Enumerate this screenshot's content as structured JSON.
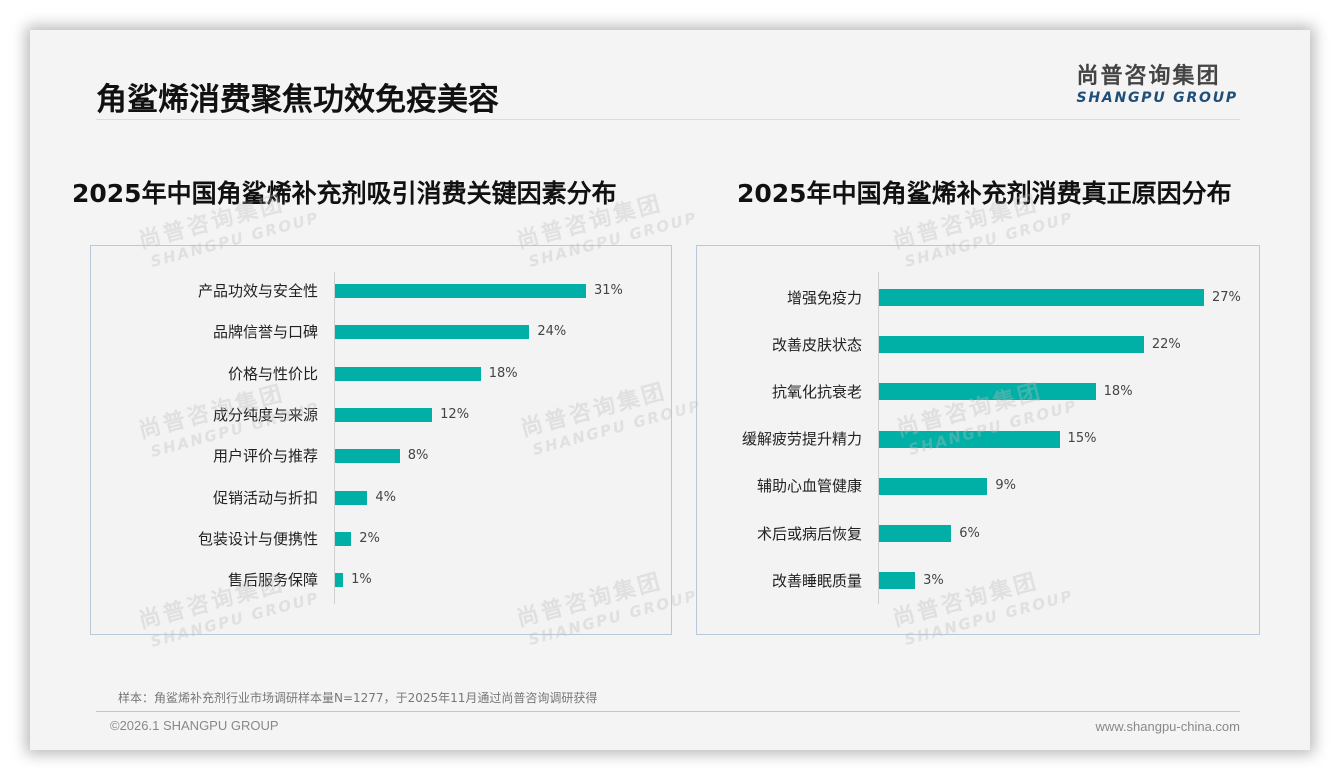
{
  "slide": {
    "title": "角鲨烯消费聚焦功效免疫美容",
    "logo": {
      "cn": "尚普咨询集团",
      "en": "SHANGPU GROUP"
    },
    "watermark": {
      "cn": "尚普咨询集团",
      "en": "SHANGPU GROUP"
    },
    "note": "样本：角鲨烯补充剂行业市场调研样本量N=1277，于2025年11月通过尚普咨询调研获得",
    "copyright": "©2026.1 SHANGPU GROUP",
    "website": "www.shangpu-china.com",
    "bar_color": "#00b0a6"
  },
  "chart_data": [
    {
      "type": "bar",
      "orientation": "horizontal",
      "title": "2025年中国角鲨烯补充剂吸引消费关键因素分布",
      "categories": [
        "产品功效与安全性",
        "品牌信誉与口碑",
        "价格与性价比",
        "成分纯度与来源",
        "用户评价与推荐",
        "促销活动与折扣",
        "包装设计与便携性",
        "售后服务保障"
      ],
      "values": [
        31,
        24,
        18,
        12,
        8,
        4,
        2,
        1
      ],
      "labels": [
        "31%",
        "24%",
        "18%",
        "12%",
        "8%",
        "4%",
        "2%",
        "1%"
      ],
      "unit": "%",
      "xlabel": "",
      "ylabel": "",
      "grid": false,
      "legend": null
    },
    {
      "type": "bar",
      "orientation": "horizontal",
      "title": "2025年中国角鲨烯补充剂消费真正原因分布",
      "categories": [
        "增强免疫力",
        "改善皮肤状态",
        "抗氧化抗衰老",
        "缓解疲劳提升精力",
        "辅助心血管健康",
        "术后或病后恢复",
        "改善睡眠质量"
      ],
      "values": [
        27,
        22,
        18,
        15,
        9,
        6,
        3
      ],
      "labels": [
        "27%",
        "22%",
        "18%",
        "15%",
        "9%",
        "6%",
        "3%"
      ],
      "unit": "%",
      "xlabel": "",
      "ylabel": "",
      "grid": false,
      "legend": null
    }
  ]
}
